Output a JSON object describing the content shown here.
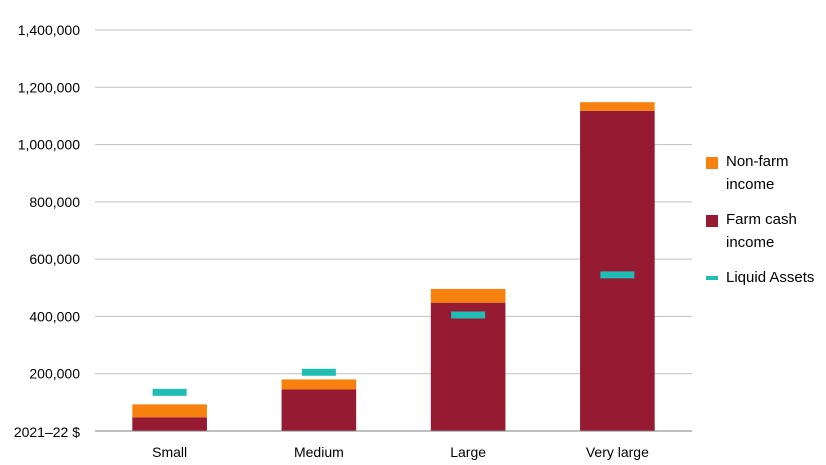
{
  "chart_data": {
    "type": "bar",
    "stacked": true,
    "categories": [
      "Small",
      "Medium",
      "Large",
      "Very large"
    ],
    "series": [
      {
        "name": "Farm cash income",
        "kind": "bar",
        "color": "#971a33",
        "values": [
          48000,
          145000,
          448000,
          1118000
        ]
      },
      {
        "name": "Non-farm income",
        "kind": "bar",
        "color": "#f7810e",
        "values": [
          45000,
          35000,
          48000,
          30000
        ]
      },
      {
        "name": "Liquid Assets",
        "kind": "marker",
        "color": "#1fbdb3",
        "values": [
          135000,
          205000,
          405000,
          545000
        ]
      }
    ],
    "legend_order": [
      "Non-farm income",
      "Farm cash income",
      "Liquid Assets"
    ],
    "legend_labels": [
      "Non-farm income",
      "Farm cash income",
      "Liquid Assets"
    ],
    "ylabel": "2021–22 $",
    "ylim": [
      0,
      1400000
    ],
    "yticks": [
      200000,
      400000,
      600000,
      800000,
      1000000,
      1200000,
      1400000
    ],
    "ytick_labels": [
      "200,000",
      "400,000",
      "600,000",
      "800,000",
      "1,000,000",
      "1,200,000",
      "1,400,000"
    ],
    "grid": true,
    "legend_position": "right"
  }
}
